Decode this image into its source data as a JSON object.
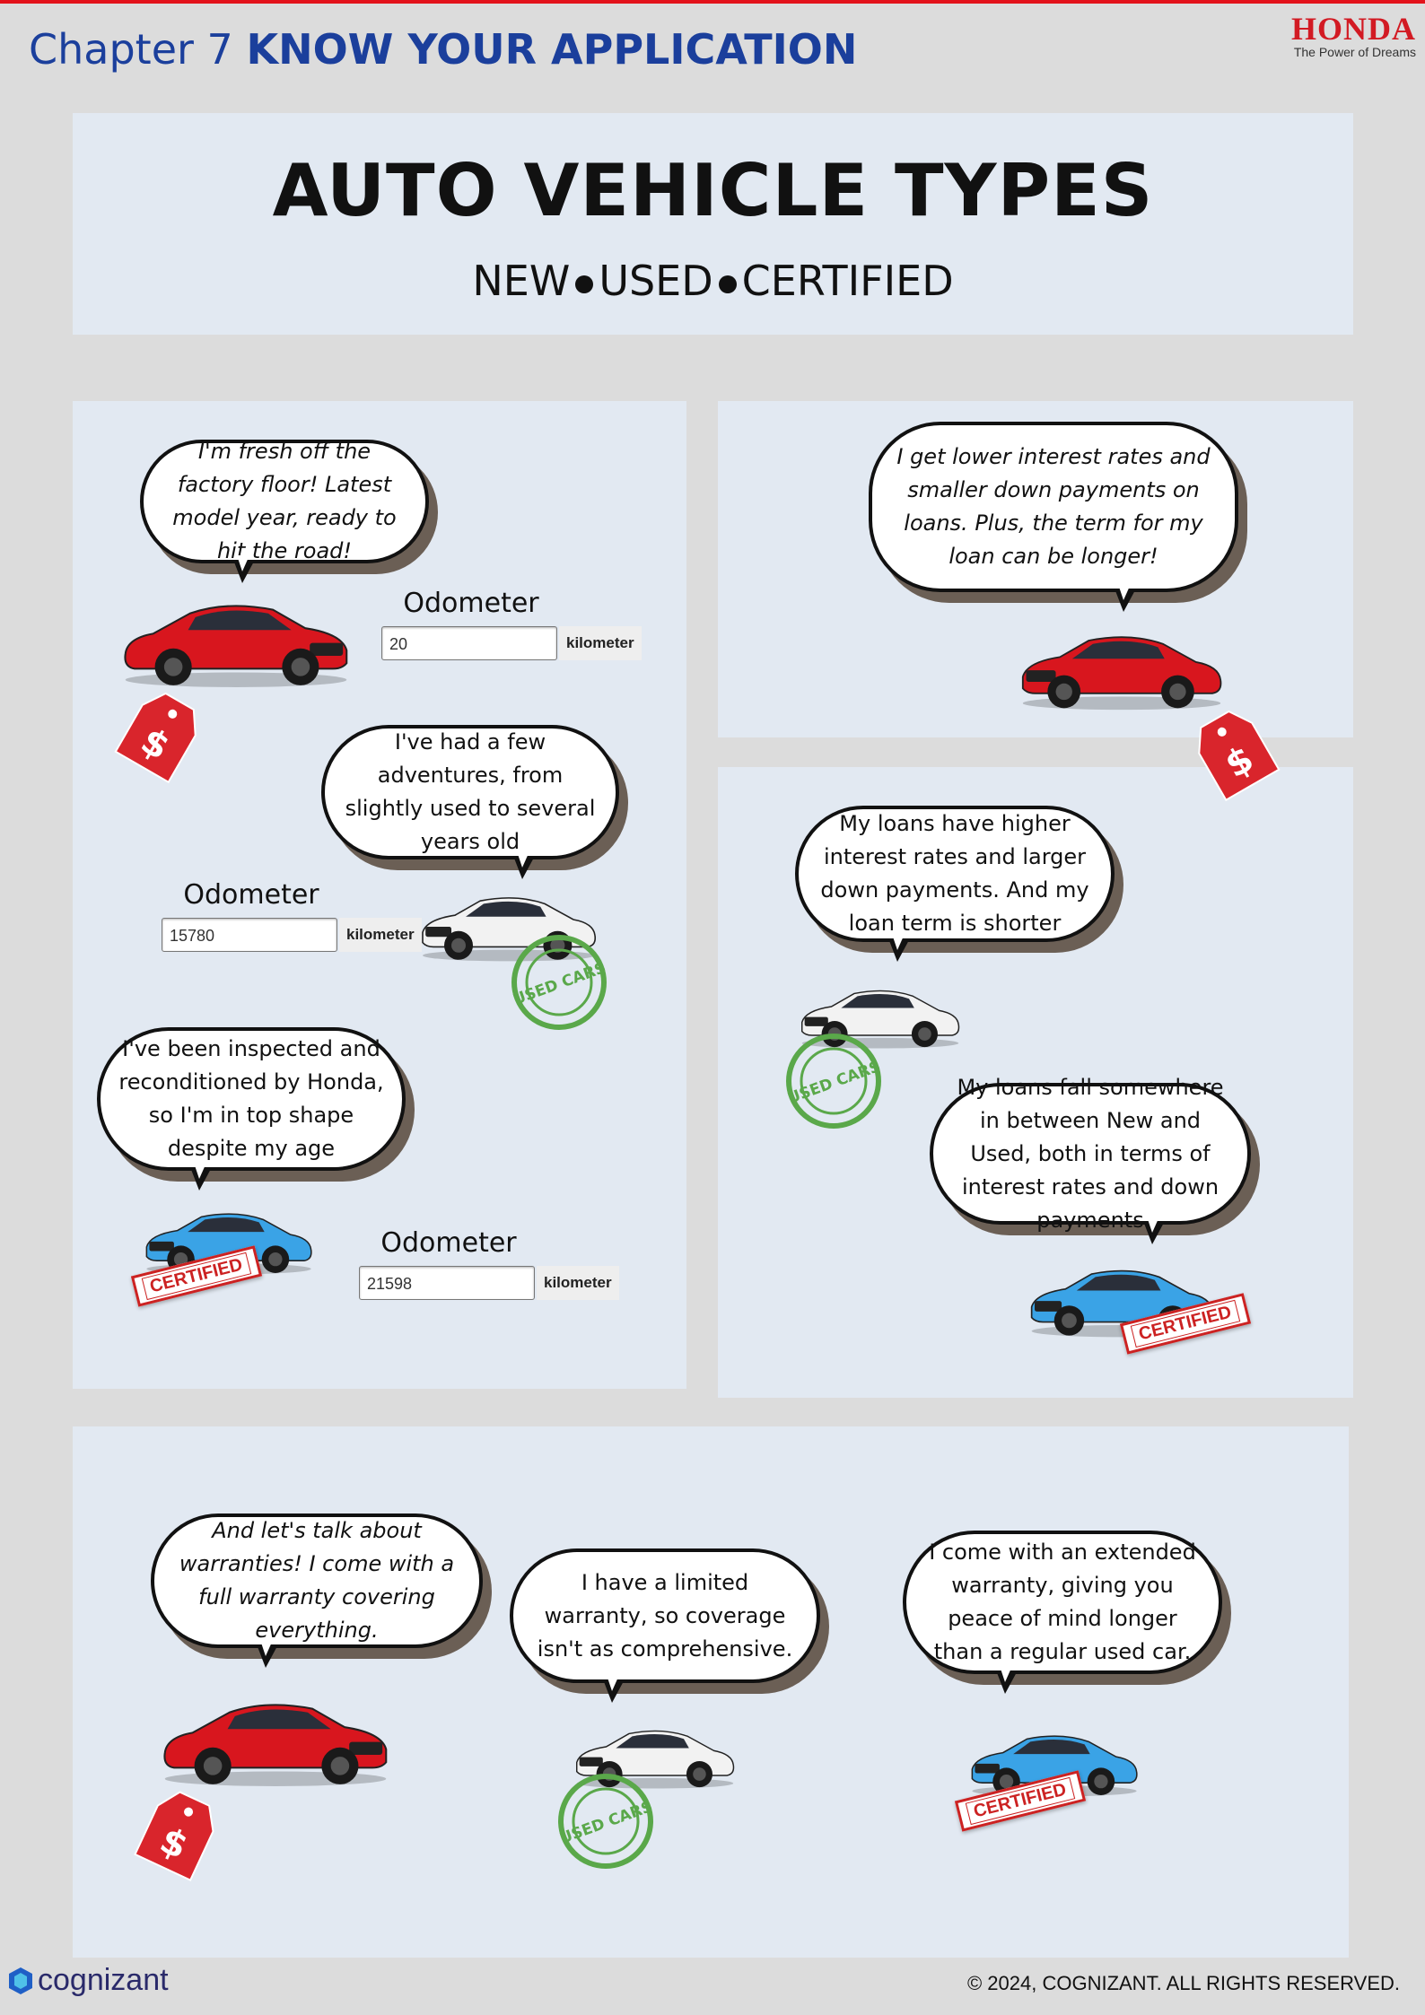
{
  "header": {
    "chapter_prefix": "Chapter 7",
    "chapter_title": "KNOW YOUR APPLICATION",
    "brand": "HONDA",
    "brand_tagline": "The Power of Dreams"
  },
  "title": {
    "main": "AUTO VEHICLE TYPES",
    "sub_new": "NEW",
    "sub_used": "USED",
    "sub_certified": "CERTIFIED"
  },
  "left": {
    "new_bubble": "I'm fresh off the factory floor! Latest model year, ready to hit the road!",
    "used_bubble": "I've had a few adventures, from slightly used to several years old",
    "certified_bubble": "I've been inspected and reconditioned by Honda, so I'm in top shape despite my age",
    "odometer_label": "Odometer",
    "unit": "kilometer",
    "new_odometer": "20",
    "used_odometer": "15780",
    "certified_odometer": "21598"
  },
  "right": {
    "new_loan_bubble": "I get lower interest rates and smaller down payments on loans. Plus, the term for my loan can be longer!",
    "used_loan_bubble": "My loans have higher interest rates and larger down payments. And my loan term is shorter",
    "certified_loan_bubble": "My loans fall somewhere in between New and Used, both in terms of interest rates and down payments"
  },
  "bottom": {
    "new_warranty_bubble": "And let's talk about warranties! I come with a full warranty covering everything.",
    "used_warranty_bubble": "I have a limited warranty, so coverage isn't as comprehensive.",
    "certified_warranty_bubble": "I come with an extended warranty, giving you peace of mind longer than a regular used car."
  },
  "stamps": {
    "certified": "CERTIFIED",
    "used_cars": "USED CARS",
    "price_symbol": "$"
  },
  "footer": {
    "company": "cognizant",
    "copyright": "© 2024, COGNIZANT. ALL RIGHTS RESERVED."
  },
  "colors": {
    "new_car": "#d8161e",
    "used_car": "#f2f2f2",
    "certified_car": "#3aa3e6",
    "accent_blue": "#1b3f9c",
    "honda_red": "#d21a23"
  }
}
